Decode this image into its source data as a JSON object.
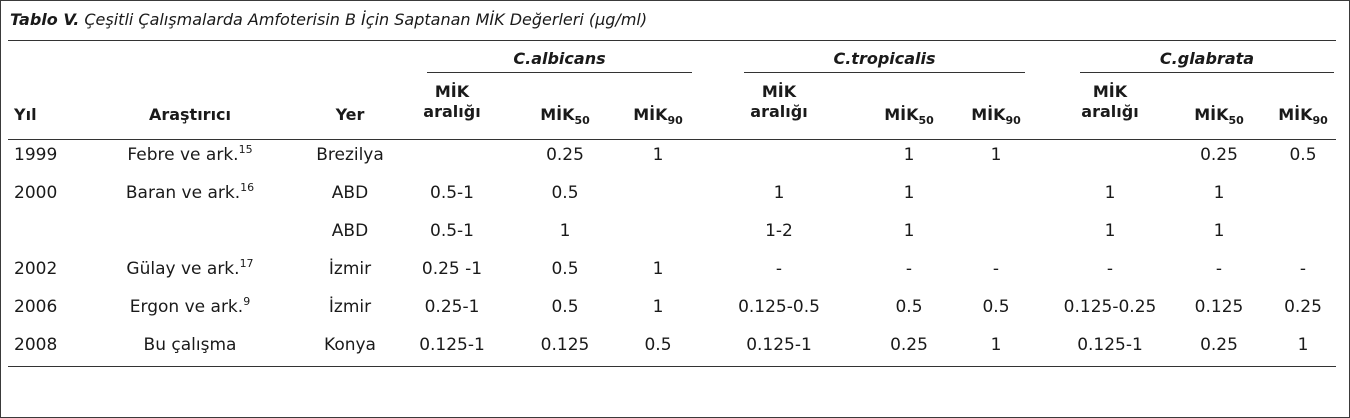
{
  "caption": {
    "label": "Tablo V.",
    "text": "Çeşitli Çalışmalarda Amfoterisin B İçin Saptanan MİK Değerleri (µg/ml)"
  },
  "groups": [
    "C.albicans",
    "C.tropicalis",
    "C.glabrata"
  ],
  "headers": {
    "year": "Yıl",
    "researcher": "Araştırıcı",
    "place": "Yer",
    "range_line1": "MİK",
    "range_line2": "aralığı",
    "mic": "MİK",
    "sub50": "50",
    "sub90": "90"
  },
  "rows": [
    {
      "year": "1999",
      "researcher": "Febre ve ark.",
      "ref": "15",
      "place": "Brezilya",
      "values": [
        "",
        "0.25",
        "1",
        "",
        "1",
        "1",
        "",
        "0.25",
        "0.5"
      ]
    },
    {
      "year": "2000",
      "researcher": "Baran ve ark.",
      "ref": "16",
      "place": "ABD",
      "values": [
        "0.5-1",
        "0.5",
        "",
        "1",
        "1",
        "",
        "1",
        "1",
        ""
      ]
    },
    {
      "year": "",
      "researcher": "",
      "ref": "",
      "place": "ABD",
      "values": [
        "0.5-1",
        "1",
        "",
        "1-2",
        "1",
        "",
        "1",
        "1",
        ""
      ]
    },
    {
      "year": "2002",
      "researcher": "Gülay ve ark.",
      "ref": "17",
      "place": "İzmir",
      "values": [
        "0.25 -1",
        "0.5",
        "1",
        "-",
        "-",
        "-",
        "-",
        "-",
        "-"
      ]
    },
    {
      "year": "2006",
      "researcher": "Ergon ve ark.",
      "ref": "9",
      "place": "İzmir",
      "values": [
        "0.25-1",
        "0.5",
        "1",
        "0.125-0.5",
        "0.5",
        "0.5",
        "0.125-0.25",
        "0.125",
        "0.25"
      ]
    },
    {
      "year": "2008",
      "researcher": "Bu çalışma",
      "ref": "",
      "place": "Konya",
      "values": [
        "0.125-1",
        "0.125",
        "0.5",
        "0.125-1",
        "0.25",
        "1",
        "0.125-1",
        "0.25",
        "1"
      ]
    }
  ]
}
